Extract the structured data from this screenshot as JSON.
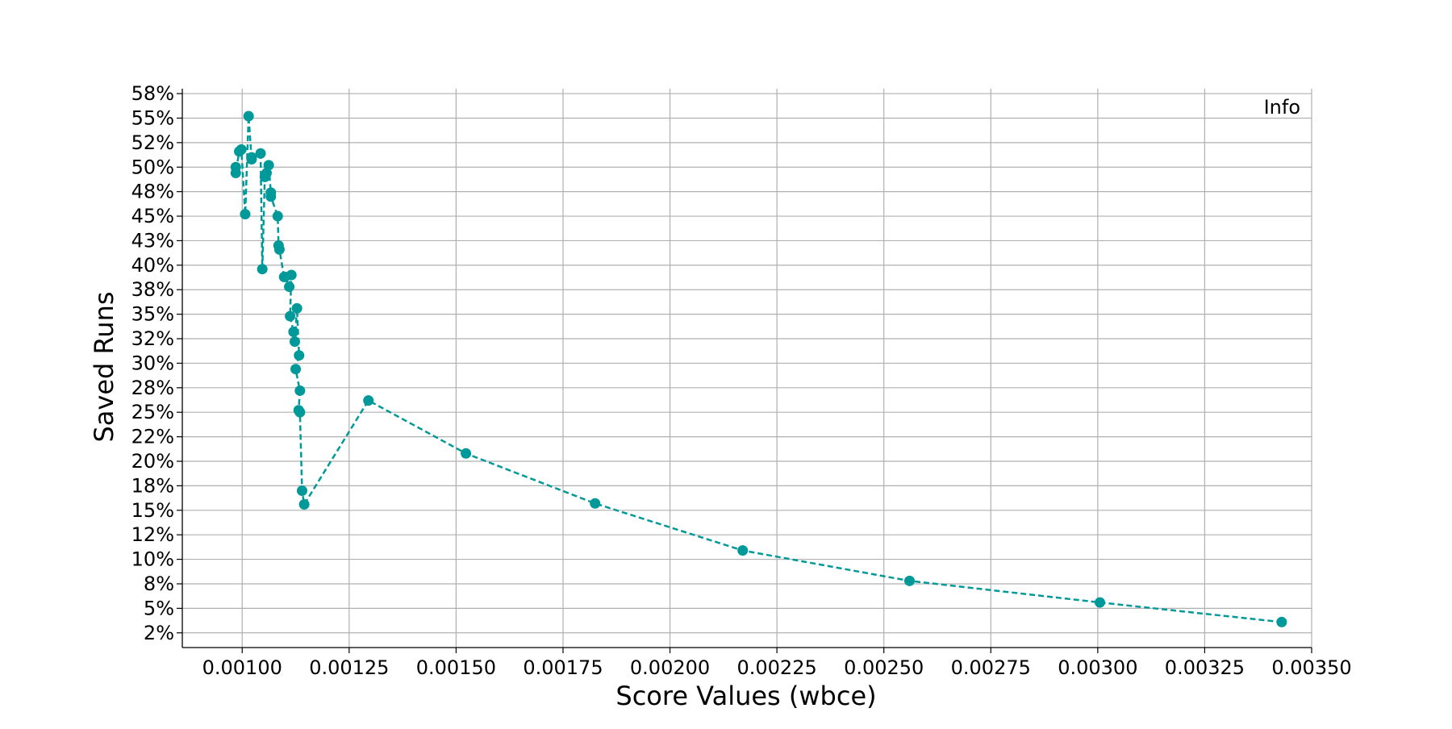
{
  "chart_data": {
    "type": "line",
    "xlabel": "Score Values (wbce)",
    "ylabel": "Saved Runs",
    "legend": {
      "text": "Info",
      "placement": "top-right"
    },
    "grid": true,
    "xlim": [
      0.00086,
      0.0035
    ],
    "ylim": [
      1.0,
      58.0
    ],
    "x_ticks": [
      0.001,
      0.00125,
      0.0015,
      0.00175,
      0.002,
      0.00225,
      0.0025,
      0.00275,
      0.003,
      0.00325,
      0.0035
    ],
    "x_tick_labels": [
      "0.00100",
      "0.00125",
      "0.00150",
      "0.00175",
      "0.00200",
      "0.00225",
      "0.00250",
      "0.00275",
      "0.00300",
      "0.00325",
      "0.00350"
    ],
    "y_ticks": [
      2.5,
      5,
      7.5,
      10,
      12.5,
      15,
      17.5,
      20,
      22.5,
      25,
      27.5,
      30,
      32.5,
      35,
      37.5,
      40,
      42.5,
      45,
      47.5,
      50,
      52.5,
      55,
      57.5
    ],
    "y_tick_labels": [
      "2%",
      "5%",
      "8%",
      "10%",
      "12%",
      "15%",
      "18%",
      "20%",
      "22%",
      "25%",
      "28%",
      "30%",
      "32%",
      "35%",
      "38%",
      "40%",
      "43%",
      "45%",
      "48%",
      "50%",
      "52%",
      "55%",
      "58%"
    ],
    "series": [
      {
        "color": "#009999",
        "line_style": "dashed",
        "marker": "circle",
        "points": [
          [
            0.000985,
            50.0
          ],
          [
            0.000985,
            49.4
          ],
          [
            0.000993,
            51.6
          ],
          [
            0.000998,
            51.8
          ],
          [
            0.001007,
            45.2
          ],
          [
            0.001015,
            55.2
          ],
          [
            0.001022,
            50.8
          ],
          [
            0.001022,
            51.0
          ],
          [
            0.001043,
            51.4
          ],
          [
            0.001047,
            39.6
          ],
          [
            0.001053,
            49.0
          ],
          [
            0.001057,
            49.4
          ],
          [
            0.001062,
            50.2
          ],
          [
            0.001067,
            47.4
          ],
          [
            0.001067,
            47.0
          ],
          [
            0.001083,
            45.0
          ],
          [
            0.001085,
            42.0
          ],
          [
            0.001087,
            41.6
          ],
          [
            0.001098,
            38.8
          ],
          [
            0.0011,
            38.8
          ],
          [
            0.00111,
            37.8
          ],
          [
            0.001115,
            39.0
          ],
          [
            0.001112,
            34.8
          ],
          [
            0.00112,
            33.2
          ],
          [
            0.001123,
            32.2
          ],
          [
            0.001128,
            35.6
          ],
          [
            0.001133,
            30.8
          ],
          [
            0.001125,
            29.4
          ],
          [
            0.001135,
            27.2
          ],
          [
            0.001132,
            25.2
          ],
          [
            0.001135,
            25.0
          ],
          [
            0.00114,
            17.0
          ],
          [
            0.001145,
            15.6
          ],
          [
            0.001295,
            26.2
          ],
          [
            0.001523,
            20.8
          ],
          [
            0.001825,
            15.7
          ],
          [
            0.00217,
            10.9
          ],
          [
            0.00256,
            7.8
          ],
          [
            0.003005,
            5.6
          ],
          [
            0.00343,
            3.6
          ]
        ]
      }
    ]
  }
}
